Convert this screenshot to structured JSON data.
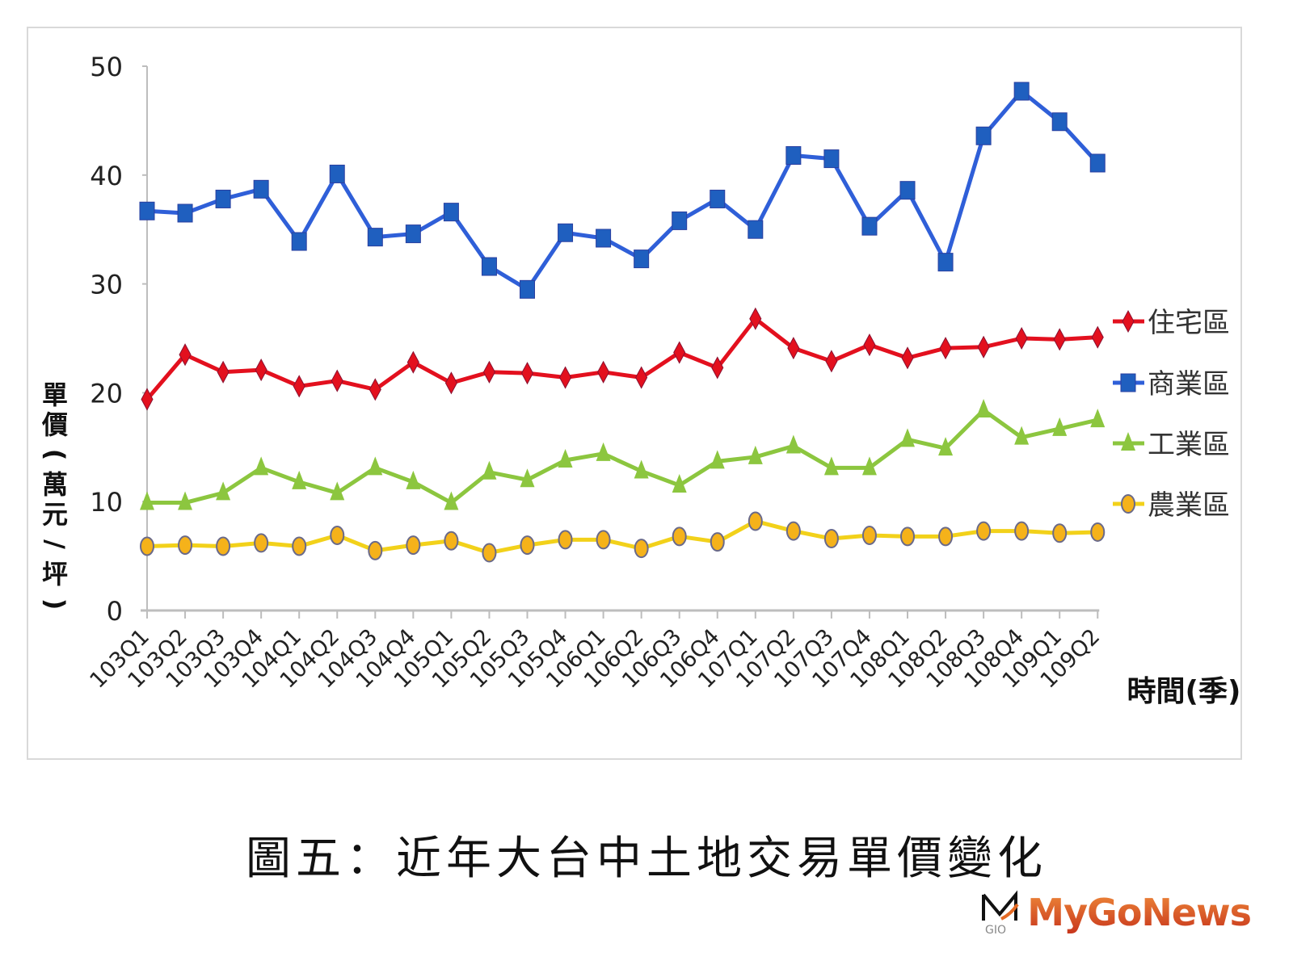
{
  "chart_data": {
    "type": "line",
    "title": "",
    "xlabel": "時間(季)",
    "ylabel": "單價(萬元/坪)",
    "ylim": [
      0,
      50
    ],
    "yticks": [
      0,
      10,
      20,
      30,
      40,
      50
    ],
    "grid": false,
    "legend_position": "right",
    "categories": [
      "103Q1",
      "103Q2",
      "103Q3",
      "103Q4",
      "104Q1",
      "104Q2",
      "104Q3",
      "104Q4",
      "105Q1",
      "105Q2",
      "105Q3",
      "105Q4",
      "106Q1",
      "106Q2",
      "106Q3",
      "106Q4",
      "107Q1",
      "107Q2",
      "107Q3",
      "107Q4",
      "108Q1",
      "108Q2",
      "108Q3",
      "108Q4",
      "109Q1",
      "109Q2"
    ],
    "series": [
      {
        "name": "住宅區",
        "color": "#e3101e",
        "marker": "diamond",
        "values": [
          19.4,
          23.5,
          21.9,
          22.1,
          20.6,
          21.1,
          20.3,
          22.8,
          20.9,
          21.9,
          21.8,
          21.4,
          21.9,
          21.4,
          23.7,
          22.3,
          26.8,
          24.1,
          22.9,
          24.4,
          23.2,
          24.1,
          24.2,
          25.0,
          24.9,
          25.1
        ]
      },
      {
        "name": "商業區",
        "color": "#2f5fd8",
        "marker": "square",
        "values": [
          36.7,
          36.5,
          37.8,
          38.7,
          33.9,
          40.1,
          34.3,
          34.6,
          36.6,
          31.6,
          29.5,
          34.7,
          34.2,
          32.3,
          35.8,
          37.8,
          35.0,
          41.8,
          41.5,
          35.3,
          38.6,
          32.0,
          43.6,
          47.7,
          44.9,
          41.1
        ]
      },
      {
        "name": "工業區",
        "color": "#8cc63f",
        "marker": "triangle",
        "values": [
          9.9,
          9.9,
          10.8,
          13.1,
          11.8,
          10.8,
          13.1,
          11.8,
          9.9,
          12.7,
          12.0,
          13.8,
          14.4,
          12.8,
          11.5,
          13.7,
          14.1,
          15.1,
          13.1,
          13.1,
          15.7,
          14.9,
          18.4,
          15.9,
          16.7,
          17.5
        ]
      },
      {
        "name": "農業區",
        "color": "#f2d11a",
        "marker": "circle",
        "values": [
          5.9,
          6.0,
          5.9,
          6.2,
          5.9,
          6.9,
          5.5,
          6.0,
          6.4,
          5.3,
          6.0,
          6.5,
          6.5,
          5.7,
          6.8,
          6.3,
          8.2,
          7.3,
          6.6,
          6.9,
          6.8,
          6.8,
          7.3,
          7.3,
          7.1,
          7.2
        ]
      }
    ]
  },
  "caption": "圖五：近年大台中土地交易單價變化",
  "watermark": {
    "text": "MyGoNews",
    "logo_letters": "GIO"
  }
}
